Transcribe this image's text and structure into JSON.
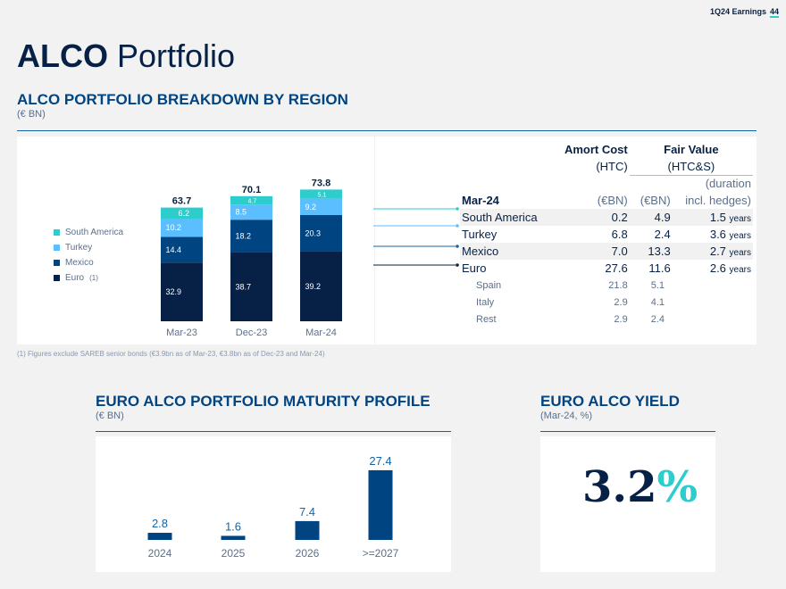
{
  "header": {
    "label": "1Q24 Earnings",
    "page": "44"
  },
  "title": {
    "bold": "ALCO",
    "rest": " Portfolio"
  },
  "region": {
    "heading": "ALCO PORTFOLIO BREAKDOWN BY REGION",
    "unit": "(€ BN)",
    "legend": [
      "South America",
      "Turkey",
      "Mexico",
      "Euro"
    ],
    "legend_note": "(1)"
  },
  "chart_data": [
    {
      "type": "bar",
      "stacked": true,
      "categories": [
        "Mar-23",
        "Dec-23",
        "Mar-24"
      ],
      "totals": [
        63.7,
        70.1,
        73.8
      ],
      "series": [
        {
          "name": "Euro",
          "values": [
            32.9,
            38.7,
            39.2
          ],
          "color": "#072146"
        },
        {
          "name": "Mexico",
          "values": [
            14.4,
            18.2,
            20.3
          ],
          "color": "#004481"
        },
        {
          "name": "Turkey",
          "values": [
            10.2,
            8.5,
            9.2
          ],
          "color": "#5bbeff"
        },
        {
          "name": "South America",
          "values": [
            6.2,
            4.7,
            5.1
          ],
          "color": "#2dcccd"
        }
      ]
    },
    {
      "type": "bar",
      "categories": [
        "2024",
        "2025",
        "2026",
        ">=2027"
      ],
      "values": [
        2.8,
        1.6,
        7.4,
        27.4
      ],
      "color": "#004481"
    }
  ],
  "table": {
    "col1_head_a": "Amort Cost",
    "col1_head_b": "(HTC)",
    "col2_head_a": "Fair Value",
    "col2_head_b": "(HTC&S)",
    "dur_head_a": "(duration",
    "dur_head_b": "incl. hedges)",
    "period": "Mar-24",
    "unit_a": "(€BN)",
    "unit_b": "(€BN)",
    "rows": [
      {
        "name": "South America",
        "amort": "0.2",
        "fair": "4.9",
        "dur": "1.5",
        "yr": "years"
      },
      {
        "name": "Turkey",
        "amort": "6.8",
        "fair": "2.4",
        "dur": "3.6",
        "yr": "years"
      },
      {
        "name": "Mexico",
        "amort": "7.0",
        "fair": "13.3",
        "dur": "2.7",
        "yr": "years"
      },
      {
        "name": "Euro",
        "amort": "27.6",
        "fair": "11.6",
        "dur": "2.6",
        "yr": "years"
      },
      {
        "name": "Spain",
        "amort": "21.8",
        "fair": "5.1"
      },
      {
        "name": "Italy",
        "amort": "2.9",
        "fair": "4.1"
      },
      {
        "name": "Rest",
        "amort": "2.9",
        "fair": "2.4"
      }
    ]
  },
  "footnote": "(1) Figures exclude SAREB senior bonds (€3.9bn as of Mar-23, €3.8bn as of Dec-23 and Mar-24)",
  "maturity": {
    "heading": "EURO ALCO PORTFOLIO MATURITY PROFILE",
    "unit": "(€ BN)"
  },
  "yield": {
    "heading": "EURO ALCO YIELD",
    "unit": "(Mar-24, %)",
    "value": "3.2",
    "pct": "%"
  }
}
